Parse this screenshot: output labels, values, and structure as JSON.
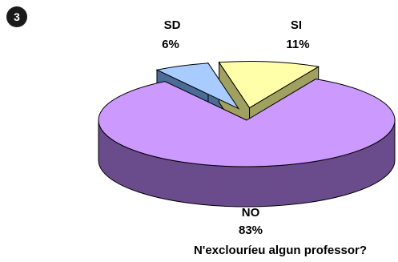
{
  "badge": "3",
  "chart_data": {
    "type": "pie",
    "title": "N'exclouríeu algun professor?",
    "slices": [
      {
        "label": "SD",
        "value": 6,
        "pct_label": "6%",
        "color": "#a8ccff",
        "side": "#4a6c96"
      },
      {
        "label": "SI",
        "value": 11,
        "pct_label": "11%",
        "color": "#ffffaa",
        "side": "#a0a060"
      },
      {
        "label": "NO",
        "value": 83,
        "pct_label": "83%",
        "color": "#cc99ff",
        "side": "#6a4c8c"
      }
    ],
    "exploded": [
      "SD",
      "SI"
    ],
    "style": "3d"
  }
}
